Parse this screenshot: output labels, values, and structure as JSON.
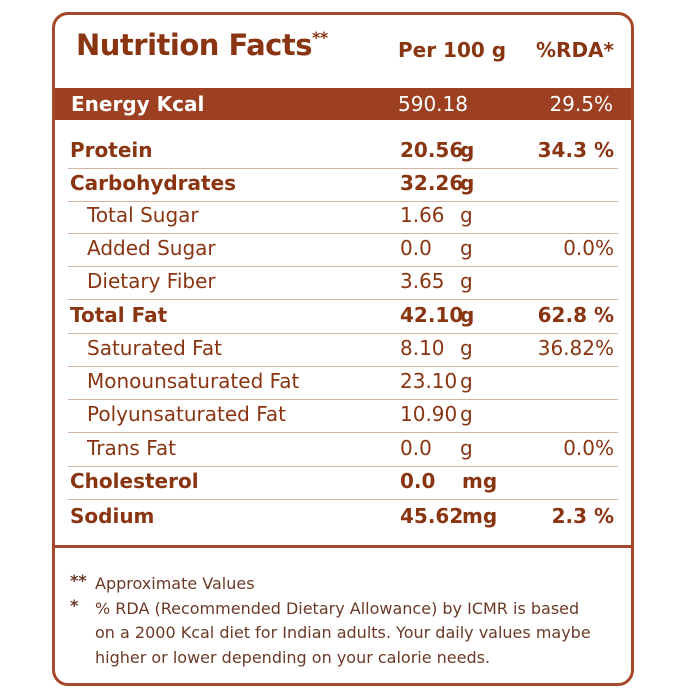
{
  "header": {
    "title": "Nutrition Facts",
    "title_mark": "**",
    "per_label": "Per 100 g",
    "rda_label": "%RDA*"
  },
  "energy": {
    "name": "Energy Kcal",
    "value": "590.18",
    "rda": "29.5%"
  },
  "rows": [
    {
      "name": "Protein",
      "value": "20.56",
      "unit": "g",
      "rda": "34.3 %",
      "bold": true
    },
    {
      "name": "Carbohydrates",
      "value": "32.26",
      "unit": "g",
      "bold": true
    },
    {
      "name": "Total Sugar",
      "value": "1.66",
      "unit": "g",
      "bold": false
    },
    {
      "name": "Added Sugar",
      "value": "0.0",
      "unit": "g",
      "rda": "0.0%",
      "bold": false
    },
    {
      "name": "Dietary Fiber",
      "value": "3.65",
      "unit": "g",
      "bold": false
    },
    {
      "name": "Total Fat",
      "value": "42.10",
      "unit": "g",
      "rda": "62.8 %",
      "bold": true
    },
    {
      "name": "Saturated Fat",
      "value": "8.10",
      "unit": "g",
      "rda": "36.82%",
      "bold": false
    },
    {
      "name": "Monounsaturated Fat",
      "value": "23.10",
      "unit": "g",
      "bold": false
    },
    {
      "name": "Polyunsaturated Fat",
      "value": "10.90",
      "unit": "g",
      "bold": false
    },
    {
      "name": "Trans Fat",
      "value": "0.0",
      "unit": "g",
      "rda": "0.0%",
      "bold": false
    },
    {
      "name": "Cholesterol",
      "value": "0.0",
      "unit": "mg",
      "bold": true
    },
    {
      "name": "Sodium",
      "value": "45.62",
      "unit": "mg",
      "rda": "2.3 %",
      "bold": true
    }
  ],
  "notes": [
    {
      "mark": "**",
      "lines": [
        "Approximate Values"
      ]
    },
    {
      "mark": "*",
      "lines": [
        "% RDA (Recommended Dietary Allowance) by ICMR is based",
        "on a 2000 Kcal diet for Indian adults. Your daily values maybe",
        "higher or lower depending on your calorie needs."
      ]
    }
  ]
}
